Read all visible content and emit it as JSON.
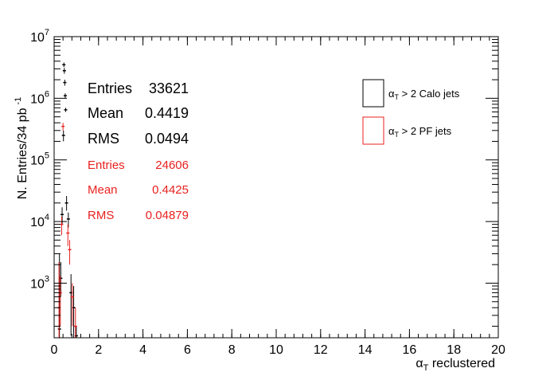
{
  "chart_data": {
    "type": "scatter",
    "xlabel_base": "α",
    "xlabel_sub": "T",
    "xlabel_rest": " reclustered",
    "ylabel": "N. Entries/34 pb",
    "ylabel_sup": "-1",
    "xlim": [
      0,
      20
    ],
    "ylim": [
      130,
      10000000
    ],
    "log_y": true,
    "x_ticks": [
      "0",
      "2",
      "4",
      "6",
      "8",
      "10",
      "12",
      "14",
      "16",
      "18",
      "20"
    ],
    "y_tick_labels": [
      {
        "base": "10",
        "exp": "3",
        "value": 1000
      },
      {
        "base": "10",
        "exp": "4",
        "value": 10000
      },
      {
        "base": "10",
        "exp": "5",
        "value": 100000
      },
      {
        "base": "10",
        "exp": "6",
        "value": 1000000
      },
      {
        "base": "10",
        "exp": "7",
        "value": 10000000
      }
    ],
    "stats": [
      {
        "label": "Entries",
        "value": "33621",
        "color": "#000000"
      },
      {
        "label": "Mean",
        "value": "0.4419",
        "color": "#000000"
      },
      {
        "label": "RMS",
        "value": "0.0494",
        "color": "#000000"
      },
      {
        "label": "Entries",
        "value": "24606",
        "color": "#e8211f"
      },
      {
        "label": "Mean",
        "value": "0.4425",
        "color": "#e8211f"
      },
      {
        "label": "RMS",
        "value": "0.04879",
        "color": "#e8211f"
      }
    ],
    "legend": [
      {
        "base": "α",
        "sub": "T",
        "rest": " > 2 Calo jets",
        "color": "#000000"
      },
      {
        "base": "α",
        "sub": "T",
        "rest": " > 2 PF jets",
        "color": "#e8211f"
      }
    ],
    "series": [
      {
        "name": "α_T > 2 Calo jets",
        "color": "#000000",
        "points": [
          {
            "x": 0.24,
            "y": 180,
            "lo": 130,
            "hi": 3000
          },
          {
            "x": 0.3,
            "y": 1200,
            "lo": 600,
            "hi": 2200
          },
          {
            "x": 0.36,
            "y": 13000,
            "lo": 9000,
            "hi": 17000
          },
          {
            "x": 0.42,
            "y": 250000,
            "lo": 200000,
            "hi": 300000
          },
          {
            "x": 0.44,
            "y": 3500000,
            "lo": 3200000,
            "hi": 3800000
          },
          {
            "x": 0.46,
            "y": 2800000,
            "lo": 2500000,
            "hi": 3100000
          },
          {
            "x": 0.48,
            "y": 1800000,
            "lo": 1600000,
            "hi": 2000000
          },
          {
            "x": 0.5,
            "y": 1100000,
            "lo": 1000000,
            "hi": 1200000
          },
          {
            "x": 0.52,
            "y": 650000,
            "lo": 600000,
            "hi": 700000
          },
          {
            "x": 0.56,
            "y": 20000,
            "lo": 15000,
            "hi": 26000
          },
          {
            "x": 0.64,
            "y": 11000,
            "lo": 8000,
            "hi": 14000
          },
          {
            "x": 0.76,
            "y": 700,
            "lo": 140,
            "hi": 1400
          },
          {
            "x": 0.88,
            "y": 400,
            "lo": 130,
            "hi": 900
          },
          {
            "x": 1.0,
            "y": 140,
            "lo": 130,
            "hi": 200
          }
        ]
      },
      {
        "name": "α_T > 2 PF jets",
        "color": "#e8211f",
        "points": [
          {
            "x": 0.22,
            "y": 400,
            "lo": 130,
            "hi": 2200
          },
          {
            "x": 0.28,
            "y": 700,
            "lo": 200,
            "hi": 1300
          },
          {
            "x": 0.34,
            "y": 9000,
            "lo": 6000,
            "hi": 12000
          },
          {
            "x": 0.4,
            "y": 350000,
            "lo": 300000,
            "hi": 400000
          },
          {
            "x": 0.62,
            "y": 6500,
            "lo": 4000,
            "hi": 9000
          },
          {
            "x": 0.7,
            "y": 3500,
            "lo": 2000,
            "hi": 5000
          },
          {
            "x": 0.82,
            "y": 600,
            "lo": 200,
            "hi": 1000
          },
          {
            "x": 0.96,
            "y": 200,
            "lo": 130,
            "hi": 400
          }
        ]
      }
    ]
  }
}
